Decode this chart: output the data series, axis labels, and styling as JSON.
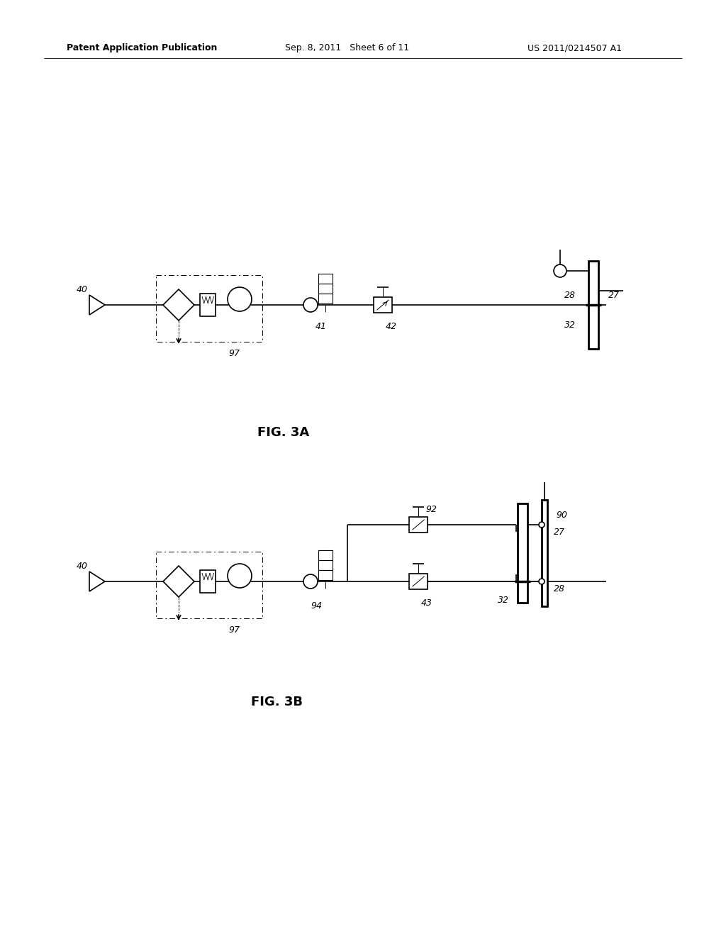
{
  "bg_color": "#ffffff",
  "header_left": "Patent Application Publication",
  "header_center": "Sep. 8, 2011   Sheet 6 of 11",
  "header_right": "US 2011/0214507 A1",
  "fig3a_label": "FIG. 3A",
  "fig3b_label": "FIG. 3B",
  "line_color": "#000000",
  "lw": 1.2,
  "lw_thin": 0.7,
  "lw_heavy": 2.0
}
